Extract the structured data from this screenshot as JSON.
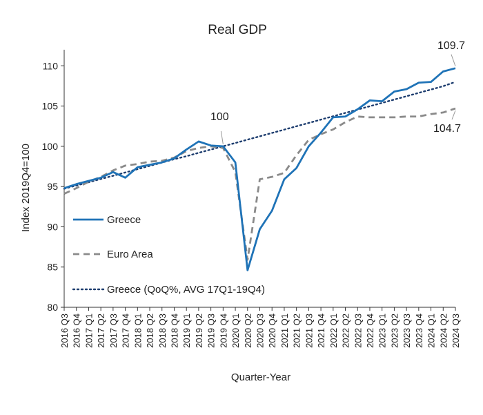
{
  "chart_data": {
    "type": "line",
    "title": "Real GDP",
    "xlabel": "Quarter-Year",
    "ylabel": "Index 2019Q4=100",
    "ylim": [
      80,
      112
    ],
    "yticks": [
      "80",
      "85",
      "90",
      "95",
      "100",
      "105",
      "110"
    ],
    "grid": false,
    "legend_position": "bottom-left",
    "categories": [
      "2016 Q3",
      "2016 Q4",
      "2017 Q1",
      "2017 Q2",
      "2017 Q3",
      "2017 Q4",
      "2018 Q1",
      "2018 Q2",
      "2018 Q3",
      "2018 Q4",
      "2019 Q1",
      "2019 Q2",
      "2019 Q3",
      "2019 Q4",
      "2020 Q1",
      "2020 Q2",
      "2020 Q3",
      "2020 Q4",
      "2021 Q1",
      "2021 Q2",
      "2021 Q3",
      "2021 Q4",
      "2022 Q1",
      "2022 Q2",
      "2022 Q3",
      "2022 Q4",
      "2023 Q1",
      "2023 Q2",
      "2023 Q3",
      "2023 Q4",
      "2024 Q1",
      "2024 Q2",
      "2024 Q3"
    ],
    "series": [
      {
        "name": "Greece",
        "style": "solid",
        "color": "#1f73b7",
        "values": [
          94.8,
          95.3,
          95.7,
          96.1,
          96.8,
          96.1,
          97.4,
          97.7,
          98.0,
          98.5,
          99.6,
          100.6,
          100.1,
          100.0,
          98.0,
          84.6,
          89.7,
          92.0,
          95.9,
          97.3,
          100.0,
          101.7,
          103.6,
          103.7,
          104.6,
          105.7,
          105.6,
          106.8,
          107.1,
          107.9,
          108.0,
          109.3,
          109.7
        ]
      },
      {
        "name": "Euro Area",
        "style": "dashed",
        "color": "#8a8a8a",
        "values": [
          94.1,
          94.8,
          95.6,
          96.2,
          97.0,
          97.6,
          97.8,
          98.1,
          98.2,
          98.6,
          99.4,
          99.8,
          100.0,
          99.8,
          96.8,
          85.9,
          95.9,
          96.2,
          96.7,
          98.9,
          100.8,
          101.5,
          102.1,
          103.0,
          103.7,
          103.6,
          103.6,
          103.6,
          103.7,
          103.7,
          104.0,
          104.2,
          104.7
        ]
      },
      {
        "name": "Greece (QoQ%, AVG 17Q1-19Q4)",
        "style": "dotted",
        "color": "#1c3c6e",
        "values": [
          94.73,
          95.13,
          95.53,
          95.94,
          96.34,
          96.75,
          97.16,
          97.57,
          97.98,
          98.4,
          98.77,
          99.19,
          99.6,
          100.0,
          100.41,
          100.83,
          101.24,
          101.66,
          102.07,
          102.49,
          102.9,
          103.32,
          103.73,
          104.15,
          104.56,
          104.98,
          105.39,
          105.81,
          106.22,
          106.64,
          107.05,
          107.47,
          108.0
        ]
      }
    ],
    "annotations": [
      {
        "text": "109.7",
        "category": "2024 Q3",
        "value": 109.7
      },
      {
        "text": "100",
        "category": "2019 Q4",
        "value": 100
      },
      {
        "text": "104.7",
        "category": "2024 Q3",
        "value": 104.7
      }
    ]
  }
}
